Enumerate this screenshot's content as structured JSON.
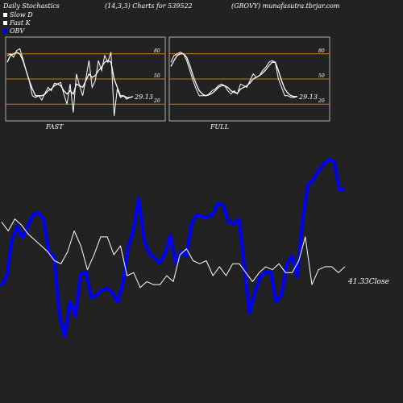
{
  "header": {
    "title": "Daily Stochastics",
    "params": "(14,3,3) Charts for 539522",
    "source": "(GROVY) munafasutra.tbrjar.com"
  },
  "legend": {
    "slow_d": "Slow  D",
    "fast_k": "Fast K",
    "obv": "OBV",
    "slow_d_color": "#ffffff",
    "fast_k_color": "#ffffff",
    "obv_color": "#0000ff"
  },
  "panels": {
    "fast": {
      "label": "FAST",
      "last_value": "29.13"
    },
    "full": {
      "label": "FULL",
      "last_value": "29.13"
    },
    "ticks": [
      "80",
      "50",
      "20"
    ],
    "band_color": "#cc7a00"
  },
  "main_chart": {
    "close_label": "41.33Close"
  },
  "chart_data": [
    {
      "type": "line",
      "name": "FAST",
      "ylim": [
        0,
        100
      ],
      "yticks": [
        80,
        50,
        20
      ],
      "series": [
        {
          "name": "Fast K",
          "values": [
            78,
            80,
            76,
            84,
            86,
            74,
            60,
            48,
            30,
            28,
            30,
            25,
            33,
            40,
            36,
            45,
            44,
            46,
            32,
            20,
            44,
            10,
            56,
            42,
            30,
            50,
            72,
            40,
            48,
            72,
            60,
            78,
            70,
            82,
            6,
            38,
            28,
            30,
            26,
            28,
            29
          ]
        },
        {
          "name": "Slow  D",
          "values": [
            70,
            78,
            80,
            82,
            80,
            72,
            60,
            48,
            38,
            30,
            30,
            30,
            32,
            36,
            38,
            42,
            44,
            42,
            36,
            32,
            36,
            32,
            44,
            42,
            40,
            48,
            56,
            52,
            54,
            60,
            64,
            70,
            72,
            70,
            50,
            40,
            30,
            30,
            28,
            28,
            29
          ]
        }
      ]
    },
    {
      "type": "line",
      "name": "FULL",
      "ylim": [
        0,
        100
      ],
      "yticks": [
        80,
        50,
        20
      ],
      "series": [
        {
          "name": "Fast K",
          "values": [
            70,
            78,
            80,
            82,
            80,
            72,
            60,
            48,
            38,
            30,
            30,
            30,
            32,
            36,
            38,
            42,
            44,
            42,
            36,
            32,
            36,
            32,
            44,
            42,
            40,
            48,
            56,
            52,
            54,
            60,
            64,
            70,
            72,
            70,
            50,
            40,
            30,
            30,
            28,
            28,
            29
          ]
        },
        {
          "name": "Slow  D",
          "values": [
            65,
            72,
            78,
            80,
            80,
            76,
            66,
            54,
            44,
            36,
            32,
            30,
            31,
            33,
            36,
            40,
            42,
            42,
            40,
            36,
            34,
            33,
            38,
            40,
            42,
            45,
            50,
            52,
            54,
            57,
            61,
            66,
            70,
            70,
            60,
            48,
            38,
            33,
            30,
            29,
            29
          ]
        }
      ]
    },
    {
      "type": "line",
      "name": "Price / OBV",
      "series": [
        {
          "name": "Close",
          "values": [
            58,
            55,
            59,
            57,
            54,
            52,
            50,
            48,
            45,
            44,
            48,
            55,
            50,
            42,
            47,
            53,
            53,
            47,
            50,
            40,
            41,
            36,
            38,
            37,
            37,
            40,
            38,
            47,
            49,
            45,
            44,
            45,
            40,
            43,
            40,
            44,
            44,
            41,
            38,
            41,
            43,
            42,
            44,
            41,
            41,
            45,
            53,
            37,
            42,
            43,
            43,
            41,
            43
          ]
        },
        {
          "name": "OBV",
          "values": [
            44,
            48,
            64,
            70,
            65,
            70,
            75,
            76,
            73,
            58,
            57,
            31,
            22,
            37,
            31,
            49,
            50,
            39,
            40,
            42,
            43,
            41,
            37,
            45,
            61,
            68,
            82,
            64,
            58,
            56,
            54,
            58,
            66,
            54,
            59,
            57,
            71,
            75,
            74,
            74,
            75,
            80,
            79,
            72,
            71,
            73,
            52,
            32,
            41,
            48,
            50,
            50,
            37,
            40,
            53,
            57,
            48,
            72,
            88,
            90,
            94,
            97,
            99,
            98,
            86,
            86
          ]
        }
      ]
    }
  ]
}
